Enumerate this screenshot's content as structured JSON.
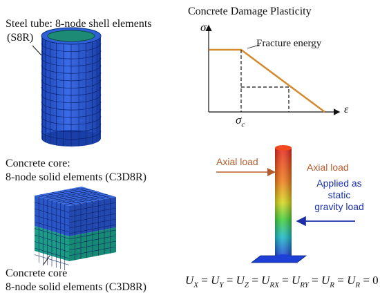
{
  "steel_tube": {
    "label_line1": "Steel tube: 8-node shell elements",
    "label_line2": "(S8R)"
  },
  "concrete_core_top": {
    "label_line1": "Concrete core:",
    "label_line2": "8-node solid elements (C3D8R)"
  },
  "concrete_core_bottom": {
    "label_line1": "Concrete core",
    "label_line2": "8-node solid elements (C3D8R)"
  },
  "cdp_chart": {
    "title": "Concrete Damage Plasticity",
    "y_symbol": "σ",
    "x_symbol": "ε",
    "tick_label": "σ",
    "tick_subscript": "c",
    "annotation": "Fracture energy"
  },
  "column": {
    "axial_load_left": "Axial load",
    "axial_load_right": "Axial load",
    "gravity_line1": "Applied as",
    "gravity_line2": "static",
    "gravity_line3": "gravity load",
    "equation": "U_X = U_Y = U_Z = U_RX = U_RY = U_R = U_R = 0"
  },
  "colors": {
    "mesh_blue": "#2a5bd7",
    "mesh_teal": "#1f9b86",
    "curve_orange": "#d28a2c",
    "axial_brown": "#b55a2a",
    "gravity_blue": "#1a2fa8"
  }
}
